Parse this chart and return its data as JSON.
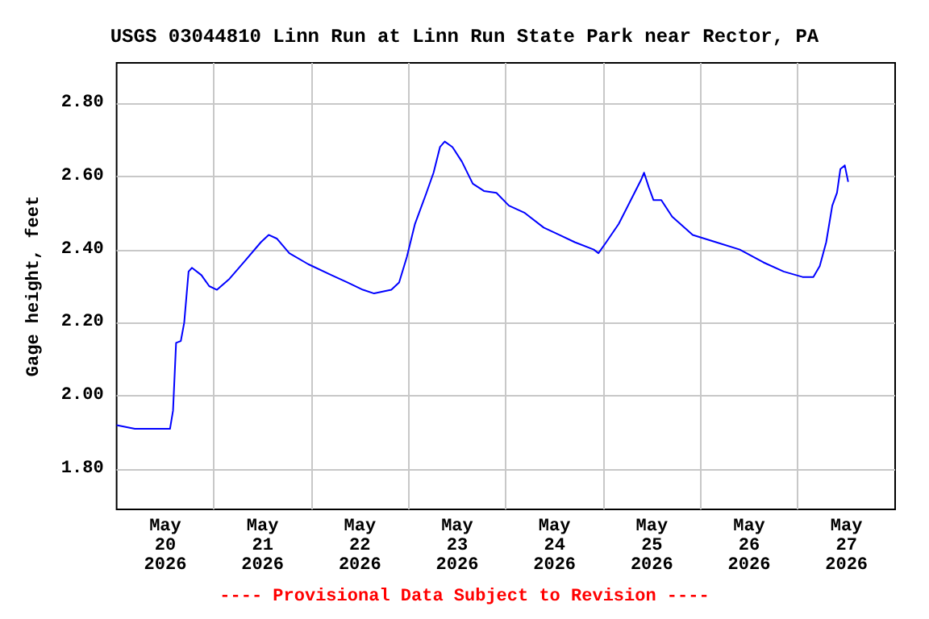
{
  "chart_data": {
    "type": "line",
    "title": "USGS 03044810 Linn Run at Linn Run State Park near Rector, PA",
    "ylabel": "Gage height, feet",
    "annotations": [
      "---- Provisional Data Subject to Revision ----"
    ],
    "x": [
      "2026-05-20T00:00",
      "2026-05-20T04:30",
      "2026-05-20T13:10",
      "2026-05-20T13:55",
      "2026-05-20T14:40",
      "2026-05-20T15:50",
      "2026-05-20T16:40",
      "2026-05-20T17:45",
      "2026-05-20T18:35",
      "2026-05-20T20:55",
      "2026-05-20T22:50",
      "2026-05-21T00:45",
      "2026-05-21T03:50",
      "2026-05-21T07:45",
      "2026-05-21T11:35",
      "2026-05-21T13:30",
      "2026-05-21T15:30",
      "2026-05-21T18:35",
      "2026-05-21T23:15",
      "2026-05-22T05:00",
      "2026-05-22T08:55",
      "2026-05-22T12:45",
      "2026-05-22T15:30",
      "2026-05-22T19:45",
      "2026-05-22T21:40",
      "2026-05-22T23:35",
      "2026-05-23T01:35",
      "2026-05-23T04:15",
      "2026-05-23T06:10",
      "2026-05-23T07:45",
      "2026-05-23T08:55",
      "2026-05-23T10:50",
      "2026-05-23T13:10",
      "2026-05-23T15:50",
      "2026-05-23T18:35",
      "2026-05-23T21:40",
      "2026-05-24T00:45",
      "2026-05-24T04:40",
      "2026-05-24T09:20",
      "2026-05-24T13:10",
      "2026-05-24T17:00",
      "2026-05-24T21:40",
      "2026-05-24T22:50",
      "2026-05-25T00:45",
      "2026-05-25T03:50",
      "2026-05-25T06:35",
      "2026-05-25T09:20",
      "2026-05-25T10:05",
      "2026-05-25T11:15",
      "2026-05-25T12:25",
      "2026-05-25T14:20",
      "2026-05-25T17:00",
      "2026-05-25T22:05",
      "2026-05-26T03:50",
      "2026-05-26T09:40",
      "2026-05-26T15:30",
      "2026-05-26T20:30",
      "2026-05-27T01:10",
      "2026-05-27T03:50",
      "2026-05-27T05:25",
      "2026-05-27T07:00",
      "2026-05-27T08:30",
      "2026-05-27T09:40",
      "2026-05-27T10:30",
      "2026-05-27T11:35",
      "2026-05-27T12:25"
    ],
    "series": [
      {
        "color": "#0000ff",
        "values": [
          1.92,
          1.91,
          1.91,
          1.96,
          2.145,
          2.15,
          2.2,
          2.34,
          2.35,
          2.33,
          2.3,
          2.29,
          2.32,
          2.37,
          2.42,
          2.44,
          2.43,
          2.39,
          2.36,
          2.33,
          2.31,
          2.29,
          2.28,
          2.29,
          2.31,
          2.38,
          2.47,
          2.55,
          2.61,
          2.68,
          2.695,
          2.68,
          2.64,
          2.58,
          2.56,
          2.555,
          2.52,
          2.5,
          2.46,
          2.44,
          2.42,
          2.4,
          2.39,
          2.42,
          2.47,
          2.53,
          2.59,
          2.61,
          2.57,
          2.535,
          2.535,
          2.49,
          2.44,
          2.42,
          2.4,
          2.365,
          2.34,
          2.325,
          2.325,
          2.355,
          2.42,
          2.52,
          2.555,
          2.62,
          2.63,
          2.585
        ]
      }
    ],
    "xlim": [
      "2026-05-20T00:00",
      "2026-05-28T00:00"
    ],
    "xticks": [
      {
        "value": "2026-05-20T12:00",
        "label": "May\n20\n2026"
      },
      {
        "value": "2026-05-21T12:00",
        "label": "May\n21\n2026"
      },
      {
        "value": "2026-05-22T12:00",
        "label": "May\n22\n2026"
      },
      {
        "value": "2026-05-23T12:00",
        "label": "May\n23\n2026"
      },
      {
        "value": "2026-05-24T12:00",
        "label": "May\n24\n2026"
      },
      {
        "value": "2026-05-25T12:00",
        "label": "May\n25\n2026"
      },
      {
        "value": "2026-05-26T12:00",
        "label": "May\n26\n2026"
      },
      {
        "value": "2026-05-27T12:00",
        "label": "May\n27\n2026"
      },
      {
        "value": "2026-05-21T00:00",
        "label": null
      },
      {
        "value": "2026-05-22T00:00",
        "label": null
      },
      {
        "value": "2026-05-23T00:00",
        "label": null
      },
      {
        "value": "2026-05-24T00:00",
        "label": null
      },
      {
        "value": "2026-05-25T00:00",
        "label": null
      },
      {
        "value": "2026-05-26T00:00",
        "label": null
      },
      {
        "value": "2026-05-27T00:00",
        "label": null
      }
    ],
    "ylim": [
      1.69,
      2.91
    ],
    "yticks": [
      {
        "value": 1.8,
        "label": "1.80"
      },
      {
        "value": 2.0,
        "label": "2.00"
      },
      {
        "value": 2.2,
        "label": "2.20"
      },
      {
        "value": 2.4,
        "label": "2.40"
      },
      {
        "value": 2.6,
        "label": "2.60"
      },
      {
        "value": 2.8,
        "label": "2.80"
      }
    ],
    "grid": true,
    "marker": "none",
    "line_style": "solid"
  }
}
